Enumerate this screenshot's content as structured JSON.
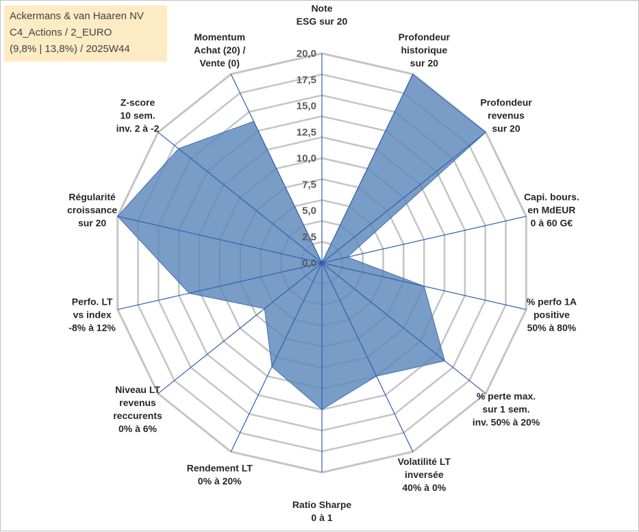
{
  "header": {
    "lines": [
      "Ackermans & van Haaren NV",
      "C4_Actions / 2_EURO",
      "(9,8% | 13,8%) / 2025W44"
    ]
  },
  "colors": {
    "fill": "#5b87bb",
    "stroke": "#3d6fb0",
    "spoke": "#2f5fae",
    "grid": "#c4c4c4",
    "box_bg": "#fdebc4"
  },
  "chart_data": {
    "type": "radar",
    "title": "Ackermans & van Haaren NV",
    "rmin": 0,
    "rmax": 20,
    "ticks": [
      "0,0",
      "2,5",
      "5,0",
      "7,5",
      "10,0",
      "12,5",
      "15,0",
      "17,5",
      "20,0"
    ],
    "tick_values": [
      0,
      2.5,
      5,
      7.5,
      10,
      12.5,
      15,
      17.5,
      20
    ],
    "grid_rings": 10,
    "axes": [
      {
        "label": [
          "Note",
          "ESG sur 20"
        ],
        "value": 0
      },
      {
        "label": [
          "Profondeur",
          "historique",
          "sur 20"
        ],
        "value": 20
      },
      {
        "label": [
          "Profondeur",
          "revenus",
          "sur 20"
        ],
        "value": 20
      },
      {
        "label": [
          "Capi. bours.",
          "en MdEUR",
          "0 à 60 G€"
        ],
        "value": 2.5
      },
      {
        "label": [
          "% perfo 1A",
          "positive",
          "50% à 80%"
        ],
        "value": 10
      },
      {
        "label": [
          "% perte max.",
          "sur 1 sem.",
          "inv. 50% à 20%"
        ],
        "value": 15
      },
      {
        "label": [
          "Volatilité LT",
          "inversée",
          "40% à 0%"
        ],
        "value": 12
      },
      {
        "label": [
          "Ratio Sharpe",
          "0 à 1"
        ],
        "value": 14
      },
      {
        "label": [
          "Rendement LT",
          "0% à 20%"
        ],
        "value": 11
      },
      {
        "label": [
          "Niveau LT",
          "revenus",
          "reccurents",
          "0% à 6%"
        ],
        "value": 7
      },
      {
        "label": [
          "Perfo. LT",
          "vs index",
          "-8% à 12%"
        ],
        "value": 13
      },
      {
        "label": [
          "Régularité",
          "croissance",
          "sur 20"
        ],
        "value": 20
      },
      {
        "label": [
          "Z-score",
          "10 sem.",
          "inv. 2 à -2"
        ],
        "value": 17.5
      },
      {
        "label": [
          "Momentum",
          "Achat (20) /",
          "Vente (0)"
        ],
        "value": 15
      }
    ]
  }
}
